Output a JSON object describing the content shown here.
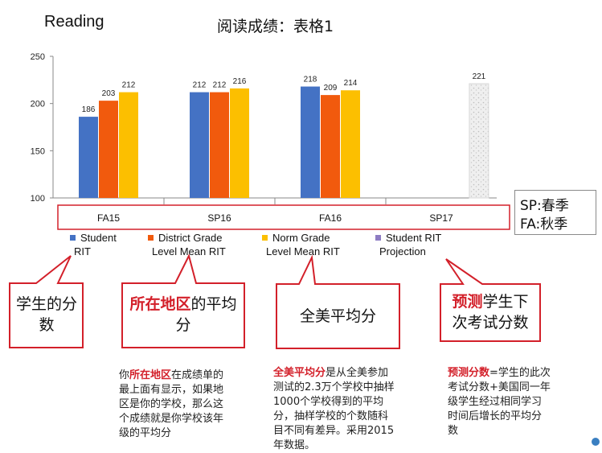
{
  "header": {
    "reading": "Reading",
    "table_title": "阅读成绩：表格1"
  },
  "chart_data": {
    "type": "bar",
    "categories": [
      "FA15",
      "SP16",
      "FA16",
      "SP17"
    ],
    "ylim": [
      100,
      250
    ],
    "yticks": [
      100,
      150,
      200,
      250
    ],
    "series": [
      {
        "name": "Student RIT",
        "color": "#4472c4",
        "values": [
          186,
          212,
          218,
          null
        ]
      },
      {
        "name": "District Grade Level Mean RIT",
        "color": "#f15a0d",
        "values": [
          203,
          212,
          209,
          null
        ]
      },
      {
        "name": "Norm Grade Level Mean RIT",
        "color": "#fcbf00",
        "values": [
          212,
          216,
          214,
          null
        ]
      },
      {
        "name": "Student RIT Projection",
        "color": "#8e7cc3",
        "values": [
          null,
          null,
          null,
          221
        ]
      }
    ]
  },
  "legend": [
    {
      "line1": "Student",
      "line2": "RIT"
    },
    {
      "line1": "District Grade",
      "line2": "Level Mean RIT"
    },
    {
      "line1": "Norm Grade",
      "line2": "Level Mean RIT"
    },
    {
      "line1": "Student RIT",
      "line2": "Projection"
    }
  ],
  "season_key": {
    "sp": "SP:春季",
    "fa": "FA:秋季"
  },
  "callouts": {
    "c1": {
      "l1": "学生的分",
      "l2": "数"
    },
    "c2": {
      "red": "所在地区",
      "rest": "的平均",
      "l2": "分"
    },
    "c3": {
      "text": "全美平均分"
    },
    "c4": {
      "red": "预测",
      "rest": "学生下",
      "l2": "次考试分数"
    }
  },
  "notes": {
    "n1": {
      "pre": "你",
      "red": "所在地区",
      "rest": "在成绩单的",
      "lines": [
        "最上面有显示，如果地",
        "区是你的学校，那么这",
        "个成绩就是你学校该年",
        "级的平均分"
      ]
    },
    "n2": {
      "red": "全美平均分",
      "rest": "是从全美参加",
      "lines": [
        "测试的2.3万个学校中抽样",
        "1000个学校得到的平均",
        "分，抽样学校的个数随科",
        "目不同有差异。采用2015",
        "年数据。"
      ]
    },
    "n3": {
      "red": "预测分数",
      "rest": "=学生的此次",
      "lines": [
        "考试分数+美国同一年",
        "级学生经过相同学习",
        "时间后增长的平均分",
        "数"
      ]
    }
  }
}
